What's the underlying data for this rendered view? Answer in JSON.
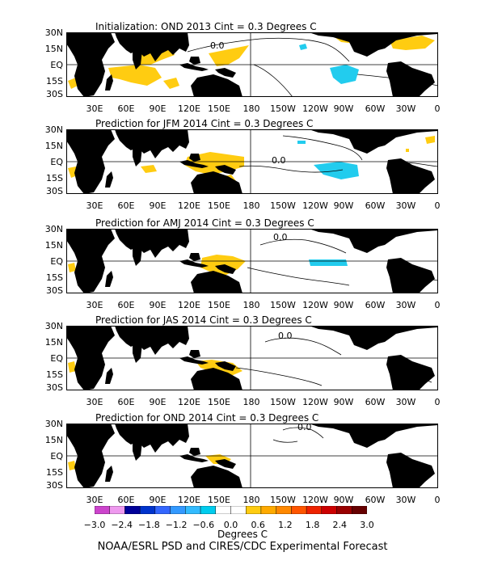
{
  "panels": [
    {
      "title": "Initialization: OND 2013  Cint = 0.3 Degrees C"
    },
    {
      "title": "Prediction for JFM 2014  Cint = 0.3 Degrees C"
    },
    {
      "title": "Prediction for AMJ 2014  Cint = 0.3 Degrees C"
    },
    {
      "title": "Prediction for JAS 2014  Cint = 0.3 Degrees C"
    },
    {
      "title": "Prediction for OND 2014  Cint = 0.3 Degrees C"
    }
  ],
  "lat_labels": [
    "30N",
    "15N",
    "EQ",
    "15S",
    "30S"
  ],
  "lon_labels": [
    "30E",
    "60E",
    "90E",
    "120E",
    "150E",
    "180",
    "150W",
    "120W",
    "90W",
    "60W",
    "30W",
    "0"
  ],
  "contour_label": "0.0",
  "colorbar": {
    "colors": [
      "#cc44cc",
      "#ee99ee",
      "#000099",
      "#0033cc",
      "#3366ff",
      "#3399ff",
      "#33bbff",
      "#00ccee",
      "#ffffff",
      "#ffffff",
      "#ffcc11",
      "#ffaa00",
      "#ff8800",
      "#ff5500",
      "#ee2200",
      "#cc0000",
      "#990000",
      "#660000"
    ],
    "labels": [
      "−3.0",
      "−2.4",
      "−1.8",
      "−1.2",
      "−0.6",
      "0.0",
      "0.6",
      "1.2",
      "1.8",
      "2.4",
      "3.0"
    ],
    "title": "Degrees C"
  },
  "footer": "NOAA/ESRL PSD and CIRES/CDC Experimental Forecast"
}
